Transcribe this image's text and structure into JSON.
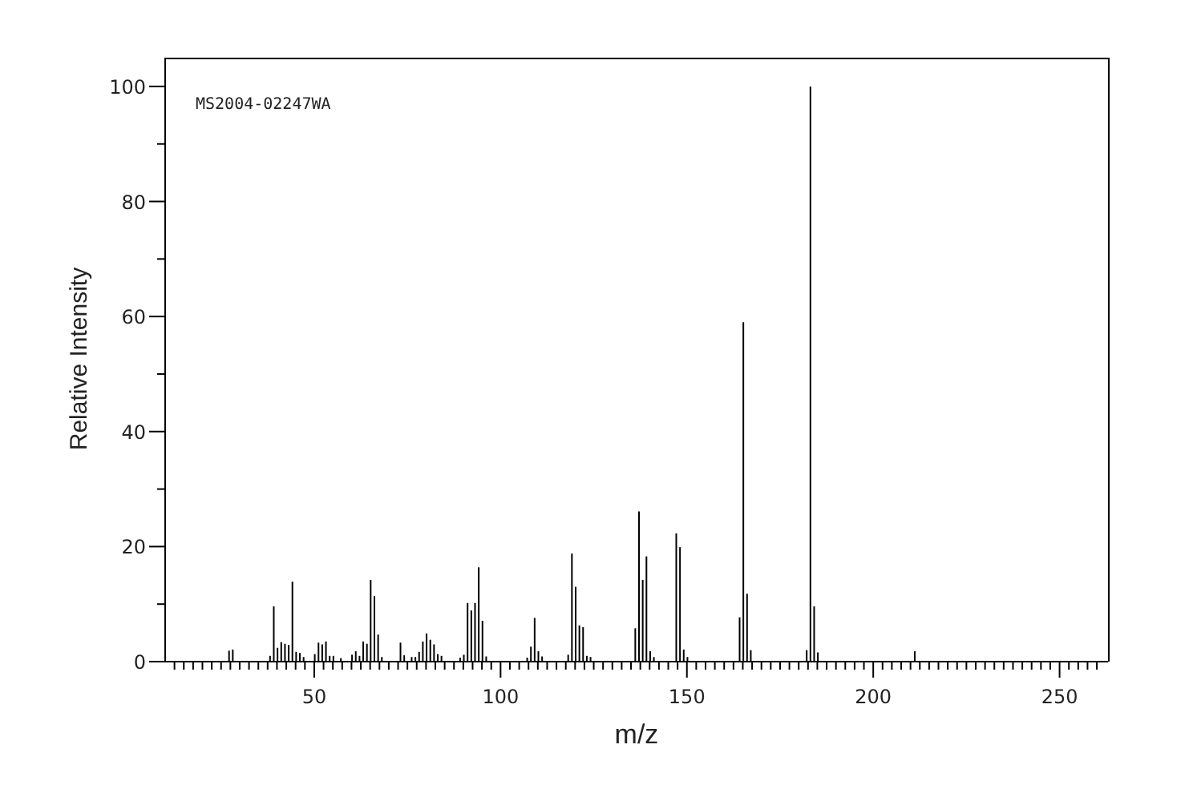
{
  "chart_data": {
    "type": "bar",
    "xlabel": "m/z",
    "ylabel": "Relative Intensity",
    "annotations": [
      "MS2004-02247WA"
    ],
    "color": "#000000",
    "x": [
      27,
      28,
      38,
      39,
      40,
      41,
      42,
      43,
      44,
      45,
      46,
      47,
      50,
      51,
      52,
      53,
      54,
      55,
      57,
      60,
      61,
      62,
      63,
      64,
      65,
      66,
      67,
      68,
      73,
      74,
      76,
      77,
      78,
      79,
      80,
      81,
      82,
      83,
      84,
      89,
      90,
      91,
      92,
      93,
      94,
      95,
      96,
      107,
      108,
      109,
      110,
      111,
      118,
      119,
      120,
      121,
      122,
      123,
      124,
      136,
      137,
      138,
      139,
      140,
      141,
      147,
      148,
      149,
      150,
      164,
      165,
      166,
      167,
      182,
      183,
      184,
      185,
      211
    ],
    "values": [
      1.9,
      2.1,
      1.0,
      9.6,
      2.4,
      3.4,
      3.1,
      2.9,
      13.9,
      1.7,
      1.5,
      0.8,
      1.3,
      3.3,
      3.0,
      3.5,
      1.0,
      1.0,
      0.6,
      1.2,
      1.8,
      1.0,
      3.5,
      3.1,
      14.2,
      11.4,
      4.7,
      0.8,
      3.3,
      1.1,
      0.8,
      0.8,
      1.7,
      3.5,
      4.9,
      3.8,
      3.0,
      1.3,
      1.0,
      0.7,
      1.2,
      10.2,
      8.9,
      10.2,
      16.4,
      7.1,
      0.9,
      0.7,
      2.6,
      7.6,
      1.8,
      0.9,
      1.2,
      18.8,
      13.0,
      6.3,
      6.0,
      1.0,
      0.8,
      5.8,
      26.1,
      14.2,
      18.3,
      1.8,
      0.8,
      22.3,
      19.9,
      2.1,
      0.8,
      7.7,
      59.0,
      11.8,
      2.0,
      2.0,
      100,
      9.6,
      1.6,
      1.8
    ],
    "xlim": [
      10,
      263
    ],
    "xticks": [
      {
        "value": 12.5,
        "label": null
      },
      {
        "value": 15,
        "label": null
      },
      {
        "value": 17.5,
        "label": null
      },
      {
        "value": 20,
        "label": null
      },
      {
        "value": 22.5,
        "label": null
      },
      {
        "value": 25,
        "label": null
      },
      {
        "value": 27.5,
        "label": null
      },
      {
        "value": 30,
        "label": null
      },
      {
        "value": 32.5,
        "label": null
      },
      {
        "value": 35,
        "label": null
      },
      {
        "value": 37.5,
        "label": null
      },
      {
        "value": 40,
        "label": null
      },
      {
        "value": 42.5,
        "label": null
      },
      {
        "value": 45,
        "label": null
      },
      {
        "value": 47.5,
        "label": null
      },
      50,
      {
        "value": 52.5,
        "label": null
      },
      {
        "value": 55,
        "label": null
      },
      {
        "value": 57.5,
        "label": null
      },
      {
        "value": 60,
        "label": null
      },
      {
        "value": 62.5,
        "label": null
      },
      {
        "value": 65,
        "label": null
      },
      {
        "value": 67.5,
        "label": null
      },
      {
        "value": 70,
        "label": null
      },
      {
        "value": 72.5,
        "label": null
      },
      {
        "value": 75,
        "label": null
      },
      {
        "value": 77.5,
        "label": null
      },
      {
        "value": 80,
        "label": null
      },
      {
        "value": 82.5,
        "label": null
      },
      {
        "value": 85,
        "label": null
      },
      {
        "value": 87.5,
        "label": null
      },
      {
        "value": 90,
        "label": null
      },
      {
        "value": 92.5,
        "label": null
      },
      {
        "value": 95,
        "label": null
      },
      {
        "value": 97.5,
        "label": null
      },
      100,
      {
        "value": 102.5,
        "label": null
      },
      {
        "value": 105,
        "label": null
      },
      {
        "value": 107.5,
        "label": null
      },
      {
        "value": 110,
        "label": null
      },
      {
        "value": 112.5,
        "label": null
      },
      {
        "value": 115,
        "label": null
      },
      {
        "value": 117.5,
        "label": null
      },
      {
        "value": 120,
        "label": null
      },
      {
        "value": 122.5,
        "label": null
      },
      {
        "value": 125,
        "label": null
      },
      {
        "value": 127.5,
        "label": null
      },
      {
        "value": 130,
        "label": null
      },
      {
        "value": 132.5,
        "label": null
      },
      {
        "value": 135,
        "label": null
      },
      {
        "value": 137.5,
        "label": null
      },
      {
        "value": 140,
        "label": null
      },
      {
        "value": 142.5,
        "label": null
      },
      {
        "value": 145,
        "label": null
      },
      {
        "value": 147.5,
        "label": null
      },
      150,
      {
        "value": 152.5,
        "label": null
      },
      {
        "value": 155,
        "label": null
      },
      {
        "value": 157.5,
        "label": null
      },
      {
        "value": 160,
        "label": null
      },
      {
        "value": 162.5,
        "label": null
      },
      {
        "value": 165,
        "label": null
      },
      {
        "value": 167.5,
        "label": null
      },
      {
        "value": 170,
        "label": null
      },
      {
        "value": 172.5,
        "label": null
      },
      {
        "value": 175,
        "label": null
      },
      {
        "value": 177.5,
        "label": null
      },
      {
        "value": 180,
        "label": null
      },
      {
        "value": 182.5,
        "label": null
      },
      {
        "value": 185,
        "label": null
      },
      {
        "value": 187.5,
        "label": null
      },
      {
        "value": 190,
        "label": null
      },
      {
        "value": 192.5,
        "label": null
      },
      {
        "value": 195,
        "label": null
      },
      {
        "value": 197.5,
        "label": null
      },
      200,
      {
        "value": 202.5,
        "label": null
      },
      {
        "value": 205,
        "label": null
      },
      {
        "value": 207.5,
        "label": null
      },
      {
        "value": 210,
        "label": null
      },
      {
        "value": 212.5,
        "label": null
      },
      {
        "value": 215,
        "label": null
      },
      {
        "value": 217.5,
        "label": null
      },
      {
        "value": 220,
        "label": null
      },
      {
        "value": 222.5,
        "label": null
      },
      {
        "value": 225,
        "label": null
      },
      {
        "value": 227.5,
        "label": null
      },
      {
        "value": 230,
        "label": null
      },
      {
        "value": 232.5,
        "label": null
      },
      {
        "value": 235,
        "label": null
      },
      {
        "value": 237.5,
        "label": null
      },
      {
        "value": 240,
        "label": null
      },
      {
        "value": 242.5,
        "label": null
      },
      {
        "value": 245,
        "label": null
      },
      {
        "value": 247.5,
        "label": null
      },
      250,
      {
        "value": 252.5,
        "label": null
      },
      {
        "value": 255,
        "label": null
      },
      {
        "value": 257.5,
        "label": null
      },
      {
        "value": 260,
        "label": null
      }
    ],
    "ylim": [
      0,
      105
    ],
    "yticks": [
      0,
      {
        "value": 10,
        "label": null
      },
      20,
      {
        "value": 30,
        "label": null
      },
      40,
      {
        "value": 50,
        "label": null
      },
      60,
      {
        "value": 70,
        "label": null
      },
      80,
      {
        "value": 90,
        "label": null
      },
      100
    ]
  }
}
